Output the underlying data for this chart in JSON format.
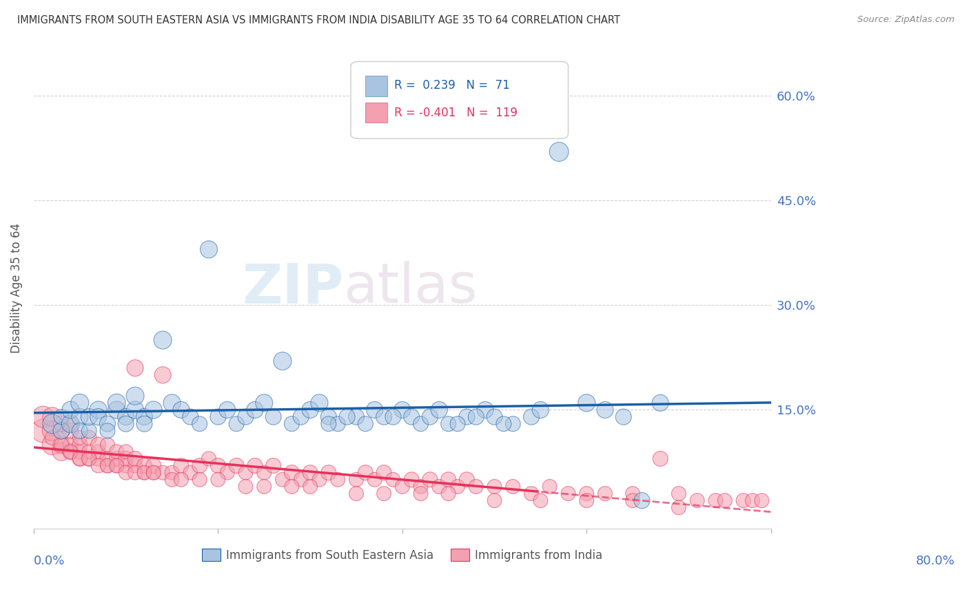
{
  "title": "IMMIGRANTS FROM SOUTH EASTERN ASIA VS IMMIGRANTS FROM INDIA DISABILITY AGE 35 TO 64 CORRELATION CHART",
  "source": "Source: ZipAtlas.com",
  "ylabel": "Disability Age 35 to 64",
  "ytick_values": [
    0.0,
    0.15,
    0.3,
    0.45,
    0.6
  ],
  "xlim": [
    0.0,
    0.8
  ],
  "ylim": [
    -0.02,
    0.67
  ],
  "blue_R": 0.239,
  "blue_N": 71,
  "pink_R": -0.401,
  "pink_N": 119,
  "blue_color": "#a8c4e0",
  "pink_color": "#f4a0b0",
  "blue_line_color": "#1a5fa8",
  "pink_line_color": "#e8305a",
  "watermark_zip": "ZIP",
  "watermark_atlas": "atlas",
  "grid_color": "#cccccc",
  "title_color": "#333333",
  "axis_label_color": "#555555",
  "tick_color": "#4472c4",
  "blue_scatter_x": [
    0.02,
    0.03,
    0.03,
    0.04,
    0.04,
    0.05,
    0.05,
    0.05,
    0.06,
    0.06,
    0.07,
    0.07,
    0.08,
    0.08,
    0.09,
    0.09,
    0.1,
    0.1,
    0.11,
    0.11,
    0.12,
    0.12,
    0.13,
    0.14,
    0.15,
    0.16,
    0.17,
    0.18,
    0.19,
    0.2,
    0.21,
    0.22,
    0.23,
    0.24,
    0.25,
    0.26,
    0.27,
    0.28,
    0.29,
    0.3,
    0.31,
    0.32,
    0.33,
    0.35,
    0.37,
    0.38,
    0.4,
    0.41,
    0.42,
    0.43,
    0.44,
    0.45,
    0.47,
    0.49,
    0.5,
    0.52,
    0.54,
    0.55,
    0.57,
    0.6,
    0.62,
    0.64,
    0.66,
    0.68,
    0.32,
    0.34,
    0.36,
    0.39,
    0.46,
    0.48,
    0.51
  ],
  "blue_scatter_y": [
    0.13,
    0.12,
    0.14,
    0.13,
    0.15,
    0.14,
    0.12,
    0.16,
    0.12,
    0.14,
    0.15,
    0.14,
    0.13,
    0.12,
    0.15,
    0.16,
    0.14,
    0.13,
    0.15,
    0.17,
    0.14,
    0.13,
    0.15,
    0.25,
    0.16,
    0.15,
    0.14,
    0.13,
    0.38,
    0.14,
    0.15,
    0.13,
    0.14,
    0.15,
    0.16,
    0.14,
    0.22,
    0.13,
    0.14,
    0.15,
    0.16,
    0.14,
    0.13,
    0.14,
    0.15,
    0.14,
    0.15,
    0.14,
    0.13,
    0.14,
    0.15,
    0.13,
    0.14,
    0.15,
    0.14,
    0.13,
    0.14,
    0.15,
    0.52,
    0.16,
    0.15,
    0.14,
    0.02,
    0.16,
    0.13,
    0.14,
    0.13,
    0.14,
    0.13,
    0.14,
    0.13
  ],
  "blue_scatter_s": [
    80,
    60,
    50,
    70,
    65,
    60,
    55,
    70,
    50,
    60,
    65,
    60,
    55,
    50,
    65,
    70,
    60,
    55,
    65,
    70,
    60,
    55,
    65,
    70,
    65,
    60,
    55,
    50,
    65,
    55,
    60,
    50,
    55,
    60,
    65,
    55,
    70,
    50,
    55,
    60,
    65,
    55,
    50,
    55,
    60,
    55,
    60,
    55,
    50,
    55,
    60,
    50,
    55,
    60,
    55,
    50,
    55,
    60,
    80,
    65,
    60,
    55,
    55,
    60,
    50,
    55,
    50,
    55,
    50,
    55,
    50
  ],
  "pink_scatter_x": [
    0.01,
    0.01,
    0.02,
    0.02,
    0.02,
    0.03,
    0.03,
    0.03,
    0.03,
    0.04,
    0.04,
    0.04,
    0.04,
    0.05,
    0.05,
    0.05,
    0.05,
    0.06,
    0.06,
    0.06,
    0.07,
    0.07,
    0.07,
    0.08,
    0.08,
    0.08,
    0.09,
    0.09,
    0.09,
    0.1,
    0.1,
    0.1,
    0.11,
    0.11,
    0.11,
    0.12,
    0.12,
    0.13,
    0.13,
    0.14,
    0.14,
    0.15,
    0.16,
    0.17,
    0.18,
    0.19,
    0.2,
    0.21,
    0.22,
    0.23,
    0.24,
    0.25,
    0.26,
    0.27,
    0.28,
    0.29,
    0.3,
    0.31,
    0.32,
    0.33,
    0.35,
    0.36,
    0.37,
    0.38,
    0.39,
    0.4,
    0.41,
    0.42,
    0.43,
    0.44,
    0.45,
    0.46,
    0.47,
    0.48,
    0.5,
    0.52,
    0.54,
    0.56,
    0.58,
    0.6,
    0.62,
    0.65,
    0.68,
    0.7,
    0.72,
    0.74,
    0.75,
    0.77,
    0.78,
    0.79,
    0.02,
    0.03,
    0.04,
    0.05,
    0.06,
    0.07,
    0.08,
    0.09,
    0.1,
    0.11,
    0.12,
    0.13,
    0.15,
    0.16,
    0.18,
    0.2,
    0.23,
    0.25,
    0.28,
    0.3,
    0.35,
    0.38,
    0.42,
    0.45,
    0.5,
    0.55,
    0.6,
    0.65,
    0.7
  ],
  "pink_scatter_y": [
    0.12,
    0.14,
    0.1,
    0.12,
    0.14,
    0.09,
    0.1,
    0.12,
    0.13,
    0.09,
    0.1,
    0.12,
    0.13,
    0.08,
    0.09,
    0.1,
    0.11,
    0.08,
    0.09,
    0.11,
    0.08,
    0.09,
    0.1,
    0.07,
    0.08,
    0.1,
    0.07,
    0.08,
    0.09,
    0.07,
    0.08,
    0.09,
    0.07,
    0.08,
    0.21,
    0.06,
    0.07,
    0.06,
    0.07,
    0.06,
    0.2,
    0.06,
    0.07,
    0.06,
    0.07,
    0.08,
    0.07,
    0.06,
    0.07,
    0.06,
    0.07,
    0.06,
    0.07,
    0.05,
    0.06,
    0.05,
    0.06,
    0.05,
    0.06,
    0.05,
    0.05,
    0.06,
    0.05,
    0.06,
    0.05,
    0.04,
    0.05,
    0.04,
    0.05,
    0.04,
    0.05,
    0.04,
    0.05,
    0.04,
    0.04,
    0.04,
    0.03,
    0.04,
    0.03,
    0.03,
    0.03,
    0.03,
    0.08,
    0.03,
    0.02,
    0.02,
    0.02,
    0.02,
    0.02,
    0.02,
    0.11,
    0.1,
    0.09,
    0.08,
    0.08,
    0.07,
    0.07,
    0.07,
    0.06,
    0.06,
    0.06,
    0.06,
    0.05,
    0.05,
    0.05,
    0.05,
    0.04,
    0.04,
    0.04,
    0.04,
    0.03,
    0.03,
    0.03,
    0.03,
    0.02,
    0.02,
    0.02,
    0.02,
    0.01
  ],
  "pink_scatter_s": [
    120,
    100,
    90,
    85,
    80,
    70,
    65,
    60,
    55,
    55,
    50,
    55,
    50,
    50,
    45,
    50,
    45,
    50,
    45,
    50,
    50,
    45,
    50,
    45,
    50,
    45,
    45,
    50,
    45,
    45,
    50,
    45,
    45,
    50,
    60,
    45,
    50,
    45,
    50,
    45,
    60,
    45,
    50,
    45,
    50,
    45,
    50,
    45,
    50,
    45,
    50,
    45,
    50,
    45,
    50,
    45,
    50,
    45,
    50,
    45,
    45,
    50,
    45,
    50,
    45,
    45,
    50,
    45,
    50,
    45,
    50,
    45,
    50,
    45,
    45,
    45,
    45,
    45,
    45,
    45,
    45,
    45,
    50,
    45,
    45,
    45,
    45,
    45,
    45,
    45,
    45,
    45,
    45,
    45,
    45,
    45,
    45,
    45,
    45,
    45,
    45,
    45,
    45,
    45,
    45,
    45,
    45,
    45,
    45,
    45,
    45,
    45,
    45,
    45,
    45,
    45,
    45,
    45,
    45
  ]
}
